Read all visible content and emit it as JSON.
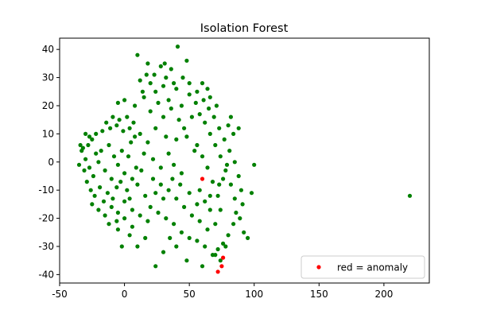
{
  "chart_data": {
    "type": "scatter",
    "title": "Isolation Forest",
    "xlabel": "",
    "ylabel": "",
    "xlim": [
      -50,
      235
    ],
    "ylim": [
      -43,
      44
    ],
    "xticks": [
      -50,
      0,
      50,
      100,
      150,
      200
    ],
    "yticks": [
      -40,
      -30,
      -20,
      -10,
      0,
      10,
      20,
      30,
      40
    ],
    "grid": false,
    "legend": {
      "placement": "lower-right",
      "entries": [
        "red = anomaly"
      ]
    },
    "colors": {
      "normal": "#008000",
      "anomaly": "#ff0000"
    },
    "series": [
      {
        "name": "red = anomaly",
        "color": "#ff0000",
        "points": [
          [
            60,
            -6
          ],
          [
            75,
            -37
          ],
          [
            76,
            -34
          ],
          [
            72,
            -39
          ]
        ]
      },
      {
        "color": "#008000",
        "points": [
          [
            10,
            38
          ],
          [
            18,
            35
          ],
          [
            28,
            34
          ],
          [
            31,
            35
          ],
          [
            36,
            33
          ],
          [
            41,
            41
          ],
          [
            48,
            36
          ],
          [
            -28,
            6
          ],
          [
            -25,
            8
          ],
          [
            -22,
            3
          ],
          [
            -30,
            1
          ],
          [
            -27,
            -2
          ],
          [
            -24,
            -5
          ],
          [
            -20,
            0
          ],
          [
            -18,
            4
          ],
          [
            -15,
            -3
          ],
          [
            -12,
            6
          ],
          [
            -10,
            -6
          ],
          [
            -8,
            2
          ],
          [
            -5,
            -1
          ],
          [
            -2,
            4
          ],
          [
            0,
            -4
          ],
          [
            3,
            2
          ],
          [
            5,
            7
          ],
          [
            -33,
            4
          ],
          [
            -31,
            -3
          ],
          [
            -29,
            -7
          ],
          [
            -26,
            -10
          ],
          [
            -23,
            -12
          ],
          [
            -19,
            -9
          ],
          [
            -16,
            -14
          ],
          [
            -13,
            -11
          ],
          [
            -9,
            -13
          ],
          [
            -6,
            -9
          ],
          [
            -3,
            -7
          ],
          [
            2,
            -10
          ],
          [
            6,
            -6
          ],
          [
            9,
            -2
          ],
          [
            8,
            9
          ],
          [
            4,
            12
          ],
          [
            -1,
            11
          ],
          [
            -6,
            13
          ],
          [
            -11,
            12
          ],
          [
            -17,
            11
          ],
          [
            -22,
            10
          ],
          [
            -27,
            9
          ],
          [
            -32,
            5
          ],
          [
            -35,
            -1
          ],
          [
            -34,
            6
          ],
          [
            -30,
            10
          ],
          [
            -25,
            -15
          ],
          [
            -20,
            -17
          ],
          [
            -15,
            -19
          ],
          [
            -10,
            -16
          ],
          [
            -5,
            -18
          ],
          [
            0,
            -14
          ],
          [
            4,
            -13
          ],
          [
            10,
            -8
          ],
          [
            13,
            -3
          ],
          [
            15,
            3
          ],
          [
            12,
            10
          ],
          [
            7,
            14
          ],
          [
            2,
            16
          ],
          [
            -4,
            15
          ],
          [
            -9,
            16
          ],
          [
            -14,
            14
          ],
          [
            20,
            28
          ],
          [
            24,
            25
          ],
          [
            30,
            27
          ],
          [
            34,
            22
          ],
          [
            40,
            26
          ],
          [
            44,
            20
          ],
          [
            50,
            24
          ],
          [
            55,
            21
          ],
          [
            58,
            17
          ],
          [
            62,
            14
          ],
          [
            66,
            10
          ],
          [
            70,
            6
          ],
          [
            74,
            2
          ],
          [
            78,
            -3
          ],
          [
            82,
            -8
          ],
          [
            85,
            -13
          ],
          [
            86,
            -18
          ],
          [
            84,
            -22
          ],
          [
            80,
            -26
          ],
          [
            76,
            -29
          ],
          [
            72,
            -31
          ],
          [
            68,
            -33
          ],
          [
            62,
            -30
          ],
          [
            56,
            -28
          ],
          [
            50,
            -27
          ],
          [
            44,
            -25
          ],
          [
            38,
            -22
          ],
          [
            32,
            -20
          ],
          [
            26,
            -18
          ],
          [
            20,
            -16
          ],
          [
            16,
            -12
          ],
          [
            22,
            -6
          ],
          [
            28,
            -2
          ],
          [
            34,
            3
          ],
          [
            40,
            8
          ],
          [
            46,
            12
          ],
          [
            52,
            16
          ],
          [
            56,
            6
          ],
          [
            60,
            2
          ],
          [
            64,
            -2
          ],
          [
            68,
            -7
          ],
          [
            72,
            -12
          ],
          [
            74,
            -17
          ],
          [
            70,
            -22
          ],
          [
            64,
            -24
          ],
          [
            58,
            -21
          ],
          [
            52,
            -19
          ],
          [
            46,
            -16
          ],
          [
            40,
            -13
          ],
          [
            34,
            -10
          ],
          [
            28,
            -8
          ],
          [
            22,
            1
          ],
          [
            18,
            7
          ],
          [
            24,
            12
          ],
          [
            30,
            16
          ],
          [
            36,
            19
          ],
          [
            42,
            15
          ],
          [
            48,
            9
          ],
          [
            54,
            4
          ],
          [
            58,
            -10
          ],
          [
            62,
            -14
          ],
          [
            66,
            -17
          ],
          [
            44,
            -4
          ],
          [
            38,
            -1
          ],
          [
            32,
            9
          ],
          [
            26,
            21
          ],
          [
            20,
            18
          ],
          [
            15,
            23
          ],
          [
            12,
            29
          ],
          [
            17,
            31
          ],
          [
            23,
            31
          ],
          [
            32,
            30
          ],
          [
            38,
            28
          ],
          [
            45,
            30
          ],
          [
            50,
            28
          ],
          [
            56,
            25
          ],
          [
            61,
            22
          ],
          [
            65,
            19
          ],
          [
            69,
            16
          ],
          [
            73,
            12
          ],
          [
            77,
            8
          ],
          [
            81,
            4
          ],
          [
            85,
            0
          ],
          [
            88,
            -5
          ],
          [
            90,
            -10
          ],
          [
            91,
            -15
          ],
          [
            89,
            -20
          ],
          [
            92,
            -25
          ],
          [
            95,
            -27
          ],
          [
            100,
            -1
          ],
          [
            98,
            -11
          ],
          [
            88,
            12
          ],
          [
            82,
            16
          ],
          [
            78,
            -30
          ],
          [
            74,
            -35
          ],
          [
            70,
            -33
          ],
          [
            60,
            -37
          ],
          [
            48,
            -35
          ],
          [
            40,
            -30
          ],
          [
            30,
            -32
          ],
          [
            24,
            -37
          ],
          [
            10,
            -30
          ],
          [
            6,
            -23
          ],
          [
            -5,
            -24
          ],
          [
            -12,
            -22
          ],
          [
            -2,
            -30
          ],
          [
            4,
            -26
          ],
          [
            16,
            -27
          ],
          [
            35,
            -27
          ],
          [
            8,
            20
          ],
          [
            0,
            22
          ],
          [
            -5,
            21
          ],
          [
            14,
            25
          ],
          [
            60,
            28
          ],
          [
            64,
            26
          ],
          [
            66,
            23
          ],
          [
            71,
            20
          ],
          [
            80,
            13
          ],
          [
            84,
            10
          ],
          [
            79,
            -1
          ],
          [
            76,
            -6
          ],
          [
            73,
            -8
          ],
          [
            66,
            -12
          ],
          [
            56,
            -15
          ],
          [
            50,
            -11
          ],
          [
            43,
            -8
          ],
          [
            37,
            -6
          ],
          [
            30,
            -13
          ],
          [
            24,
            -11
          ],
          [
            18,
            -21
          ],
          [
            12,
            -19
          ],
          [
            6,
            -17
          ],
          [
            0,
            -20
          ],
          [
            -6,
            -21
          ],
          [
            220,
            -12
          ]
        ]
      }
    ]
  }
}
